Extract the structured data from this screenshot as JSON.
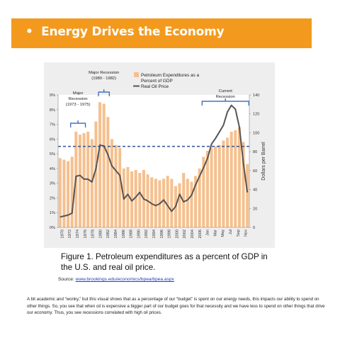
{
  "slide": {
    "bullet": "•",
    "title": "Energy Drives the Economy",
    "caption": "Figure 1. Petroleum expenditures as a percent of GDP in the U.S. and real oil price.",
    "source_label": "Source: ",
    "source_link": "www.brookings.edu/economics/bpea/bpea.aspx",
    "body": "A bit academic and “wonky,” but this visual shows that as a percentage of our “budget” is spent on our energy needs, this impacts our ability to spend on other things.  So, you see that when oil is expensive a bigger part of our budget goes for that necessity and we have less to spend on other things that drive our economy.  Thus, you see recessions correlated with high oil prices."
  },
  "colors": {
    "banner": "#f39a1e",
    "bars": "#f5c08f",
    "oil_line": "#555555",
    "dashed_line": "#3b5b9a",
    "recession_bracket": "#4472c4",
    "plot_bg": "#ffffff"
  },
  "chart_data": {
    "type": "bar",
    "x_tick_labels": [
      "1970",
      "1972",
      "1974",
      "1976",
      "1978",
      "1980",
      "1982",
      "1984",
      "1986",
      "1988",
      "1990",
      "1992",
      "1994",
      "1996",
      "1998",
      "2000",
      "2002",
      "2004",
      "2006",
      "Jan",
      "Mar",
      "May",
      "Jul",
      "Sep",
      "Nov"
    ],
    "y_left": {
      "ticks": [
        "0%",
        "1%",
        "2%",
        "3%",
        "4%",
        "5%",
        "6%",
        "7%",
        "8%",
        "9%"
      ],
      "range": [
        0,
        9
      ]
    },
    "y_right": {
      "label": "Dollars per Barrel",
      "ticks": [
        "0",
        "20",
        "40",
        "60",
        "80",
        "100",
        "120",
        "140"
      ],
      "range": [
        0,
        140
      ]
    },
    "legend": [
      "Petroleum Expenditures as a Percent of GDP",
      "Real Oil Price"
    ],
    "series": [
      {
        "name": "Petroleum Expenditures as a Percent of GDP",
        "type": "bar",
        "axis": "left",
        "values": [
          4.7,
          4.6,
          4.5,
          4.8,
          6.5,
          6.3,
          6.4,
          6.5,
          6.0,
          7.2,
          8.5,
          8.4,
          7.5,
          6.0,
          5.6,
          5.4,
          4.0,
          4.1,
          3.8,
          3.9,
          3.7,
          3.9,
          3.6,
          3.4,
          3.3,
          3.2,
          3.3,
          3.5,
          3.3,
          2.8,
          3.0,
          3.7,
          3.3,
          3.1,
          3.5,
          4.0,
          4.8,
          5.2,
          5.4,
          5.5,
          5.6,
          5.9,
          6.1,
          6.5,
          6.6,
          6.8,
          5.8,
          4.3
        ]
      },
      {
        "name": "Real Oil Price",
        "type": "line",
        "axis": "right",
        "values": [
          11,
          12,
          13,
          15,
          54,
          55,
          51,
          51,
          48,
          62,
          87,
          86,
          77,
          65,
          60,
          55,
          30,
          35,
          28,
          32,
          37,
          30,
          28,
          25,
          23,
          25,
          29,
          23,
          17,
          22,
          35,
          27,
          29,
          34,
          45,
          54,
          63,
          73,
          88,
          94,
          101,
          108,
          122,
          129,
          125,
          106,
          68,
          37
        ]
      }
    ],
    "reference_line": {
      "axis": "left",
      "value": 5.5,
      "style": "dashed"
    },
    "annotations": [
      {
        "label_lines": [
          "Major",
          "Recession",
          "(1973 - 1975)"
        ],
        "from_index": 3,
        "to_index": 6
      },
      {
        "label_lines": [
          "Major Recession",
          "(1980 - 1982)"
        ],
        "from_index": 10,
        "to_index": 12
      },
      {
        "label_lines": [
          "Current",
          "Recession"
        ],
        "from_index": 36,
        "to_index": 47
      }
    ]
  }
}
